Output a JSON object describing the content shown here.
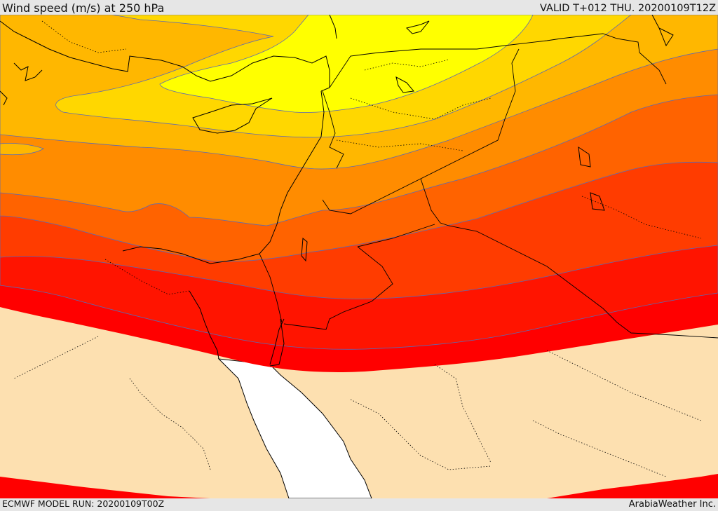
{
  "header": {
    "title": "Wind speed (m/s) at 250 hPa",
    "valid": "VALID T+012 THU. 20200109T12Z"
  },
  "footer": {
    "model_run": "ECMWF MODEL RUN: 20200109T00Z",
    "credit": "ArabiaWeather Inc."
  },
  "map": {
    "parameter": "250 hPa wind speed",
    "units": "m/s",
    "colors": {
      "band_1": "#ffff00",
      "band_2": "#ffd700",
      "band_3": "#ffb700",
      "band_4": "#ff8c00",
      "band_5": "#ff6300",
      "band_6": "#ff3c00",
      "band_7": "#ff1400",
      "band_8": "#ff0000",
      "land_below_threshold": "#fde0b0",
      "sea_below_threshold": "#ffffff",
      "contour": "#5a6ab5"
    }
  }
}
